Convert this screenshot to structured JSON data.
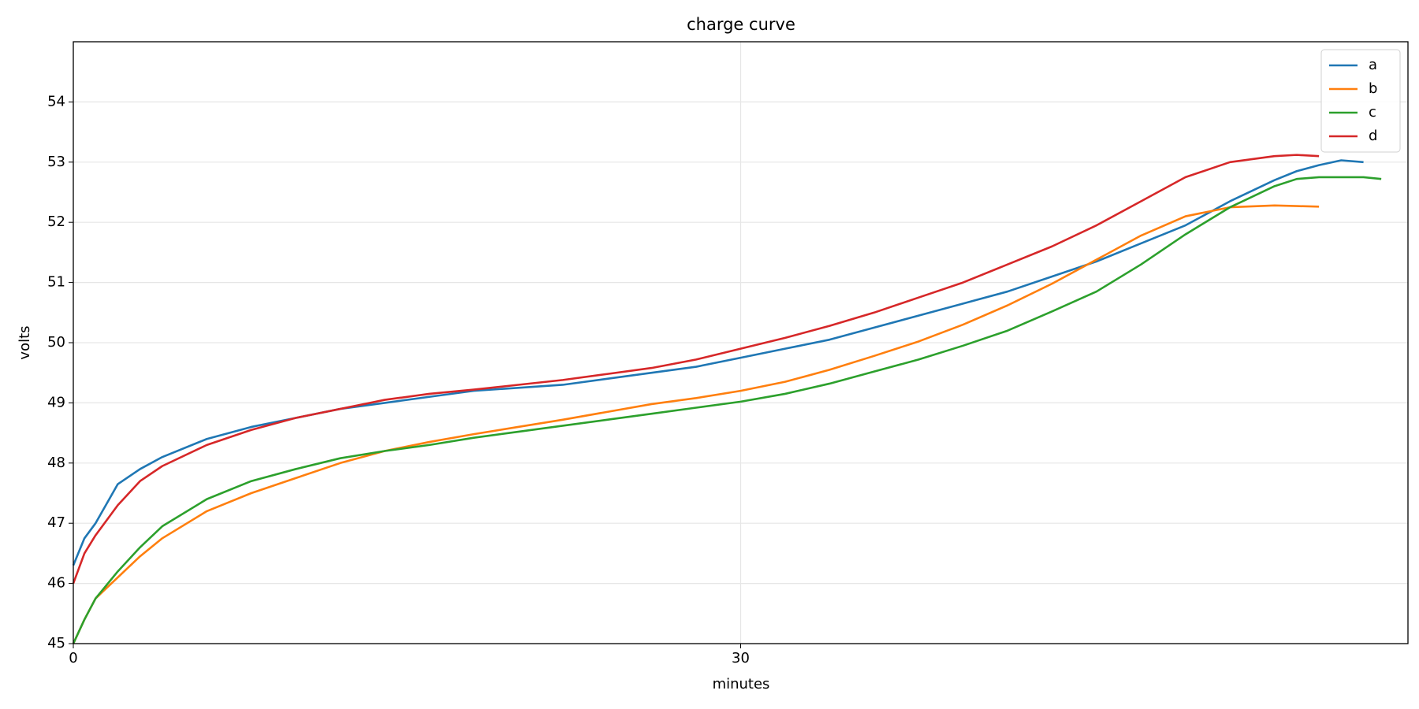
{
  "chart_data": {
    "type": "line",
    "title": "charge curve",
    "x_label": "minutes",
    "y_label": "volts",
    "x": [
      0,
      0.5,
      1,
      2,
      3,
      4,
      6,
      8,
      10,
      12,
      14,
      16,
      18,
      20,
      22,
      24,
      26,
      28,
      30,
      32,
      34,
      36,
      38,
      40,
      42,
      44,
      46,
      48,
      50,
      52,
      54,
      55,
      56,
      57,
      58,
      58.8
    ],
    "series": [
      {
        "name": "a",
        "color": "#1f77b4",
        "values": [
          46.3,
          46.75,
          47.0,
          47.65,
          47.9,
          48.1,
          48.4,
          48.6,
          48.75,
          48.9,
          49.0,
          49.1,
          49.2,
          49.25,
          49.3,
          49.4,
          49.5,
          49.6,
          49.75,
          49.9,
          50.05,
          50.25,
          50.45,
          50.65,
          50.85,
          51.1,
          51.35,
          51.65,
          51.95,
          52.35,
          52.7,
          52.85,
          52.95,
          53.03,
          53.0,
          null
        ]
      },
      {
        "name": "b",
        "color": "#ff7f0e",
        "values": [
          45.0,
          45.4,
          45.75,
          46.1,
          46.45,
          46.75,
          47.2,
          47.5,
          47.75,
          48.0,
          48.2,
          48.35,
          48.48,
          48.6,
          48.72,
          48.85,
          48.98,
          49.08,
          49.2,
          49.35,
          49.55,
          49.78,
          50.02,
          50.3,
          50.62,
          50.98,
          51.38,
          51.78,
          52.1,
          52.25,
          52.28,
          52.27,
          52.26,
          null,
          null,
          null
        ]
      },
      {
        "name": "c",
        "color": "#2ca02c",
        "values": [
          45.0,
          45.4,
          45.75,
          46.2,
          46.6,
          46.95,
          47.4,
          47.7,
          47.9,
          48.08,
          48.2,
          48.3,
          48.42,
          48.52,
          48.62,
          48.72,
          48.82,
          48.92,
          49.02,
          49.15,
          49.32,
          49.52,
          49.72,
          49.95,
          50.2,
          50.52,
          50.85,
          51.3,
          51.8,
          52.25,
          52.6,
          52.72,
          52.75,
          52.75,
          52.75,
          52.72
        ]
      },
      {
        "name": "d",
        "color": "#d62728",
        "values": [
          46.0,
          46.5,
          46.8,
          47.3,
          47.7,
          47.95,
          48.3,
          48.55,
          48.75,
          48.9,
          49.05,
          49.15,
          49.22,
          49.3,
          49.38,
          49.48,
          49.58,
          49.72,
          49.9,
          50.08,
          50.28,
          50.5,
          50.75,
          51.0,
          51.3,
          51.6,
          51.95,
          52.35,
          52.75,
          53.0,
          53.1,
          53.12,
          53.1,
          null,
          null,
          null
        ]
      }
    ],
    "xlim": [
      0,
      60
    ],
    "xticks": [
      0,
      30
    ],
    "ylim": [
      45,
      55
    ],
    "yticks": [
      45,
      46,
      47,
      48,
      49,
      50,
      51,
      52,
      53,
      54
    ],
    "grid": true,
    "legend": "upper right"
  }
}
